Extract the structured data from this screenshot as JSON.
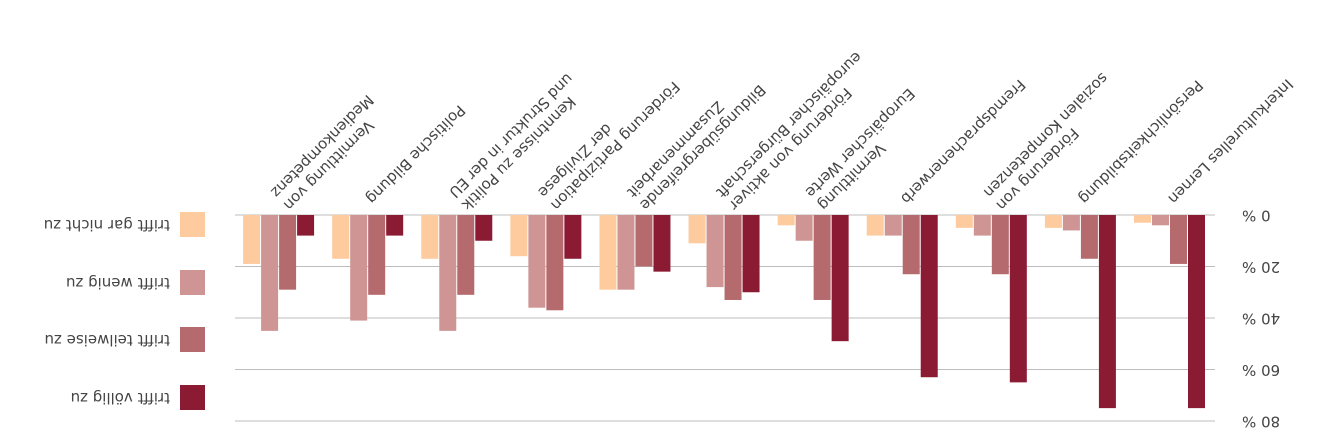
{
  "chart_data": {
    "type": "bar",
    "categories": [
      [
        "Interkulturelles Lernen"
      ],
      [
        "Persönlichkeitsbildung"
      ],
      [
        "Förderung von",
        "sozialen Kompetenzen"
      ],
      [
        "Fremdsprachenerwerb"
      ],
      [
        "Vermittlung",
        "Europäischer Werte"
      ],
      [
        "Förderung von aktiver",
        "europäischer Bürgerschaft"
      ],
      [
        "Bildungsübergreifende",
        "Zusammenarbeit"
      ],
      [
        "Förderung Partizipation",
        "der Zivilgese"
      ],
      [
        "Kenntnisse zu Politik",
        "und Struktur in der EU"
      ],
      [
        "Politische Bildung"
      ],
      [
        "Vermittlung von",
        "Medienkompetenz"
      ]
    ],
    "series": [
      {
        "name": "trifft völlig zu",
        "color": "#8b1a33",
        "values": [
          75,
          75,
          65,
          63,
          49,
          30,
          22,
          17,
          10,
          8,
          8
        ]
      },
      {
        "name": "trifft teilweise zu",
        "color": "#b56a6e",
        "values": [
          19,
          17,
          23,
          23,
          33,
          33,
          20,
          37,
          31,
          31,
          29
        ]
      },
      {
        "name": "trifft wenig zu",
        "color": "#cf9594",
        "values": [
          4,
          6,
          8,
          8,
          10,
          28,
          29,
          36,
          45,
          41,
          45
        ]
      },
      {
        "name": "trifft gar nicht zu",
        "color": "#fdcb9e",
        "values": [
          3,
          5,
          5,
          8,
          4,
          11,
          29,
          16,
          17,
          17,
          19
        ]
      }
    ],
    "ylim": [
      0,
      80
    ],
    "yticks": [
      {
        "value": 0,
        "label": "0 %"
      },
      {
        "value": 20,
        "label": "20 %"
      },
      {
        "value": 40,
        "label": "40 %"
      },
      {
        "value": 60,
        "label": "60 %"
      },
      {
        "value": 80,
        "label": "80 %"
      }
    ],
    "grid": true,
    "legend": "right"
  }
}
